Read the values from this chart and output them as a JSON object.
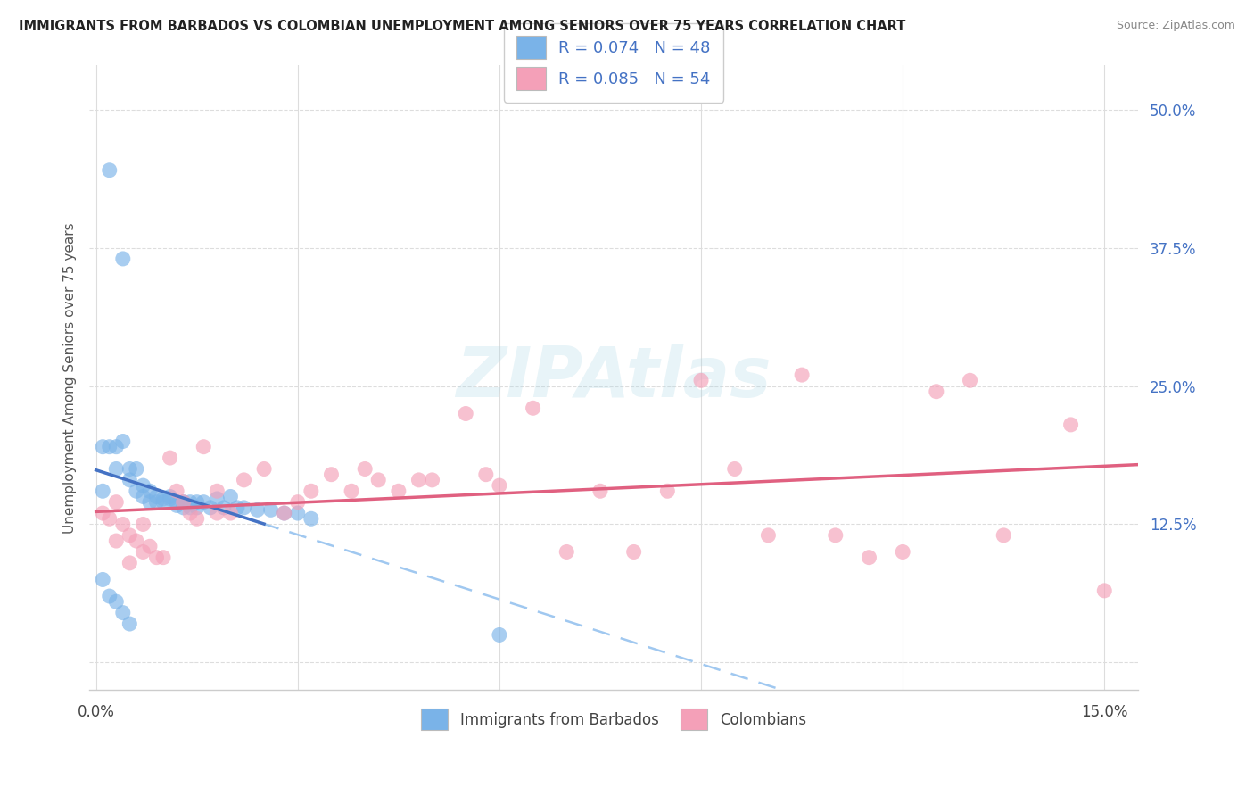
{
  "title": "IMMIGRANTS FROM BARBADOS VS COLOMBIAN UNEMPLOYMENT AMONG SENIORS OVER 75 YEARS CORRELATION CHART",
  "source": "Source: ZipAtlas.com",
  "ylabel": "Unemployment Among Seniors over 75 years",
  "y_ticks_right": [
    0.0,
    0.125,
    0.25,
    0.375,
    0.5
  ],
  "y_tick_labels_right": [
    "",
    "12.5%",
    "25.0%",
    "37.5%",
    "50.0%"
  ],
  "xlim": [
    -0.001,
    0.155
  ],
  "ylim": [
    -0.025,
    0.54
  ],
  "legend_R_blue": "R = 0.074",
  "legend_N_blue": "N = 48",
  "legend_R_pink": "R = 0.085",
  "legend_N_pink": "N = 54",
  "legend_label_blue": "Immigrants from Barbados",
  "legend_label_pink": "Colombians",
  "blue_color": "#7ab3e8",
  "pink_color": "#f4a0b8",
  "blue_line_color": "#4472c4",
  "pink_line_color": "#e06080",
  "blue_dash_color": "#a0c8f0",
  "background_color": "#ffffff",
  "grid_color": "#dddddd",
  "blue_points_x": [
    0.002,
    0.004,
    0.001,
    0.003,
    0.002,
    0.001,
    0.003,
    0.004,
    0.005,
    0.006,
    0.005,
    0.007,
    0.006,
    0.008,
    0.007,
    0.009,
    0.01,
    0.008,
    0.011,
    0.01,
    0.009,
    0.012,
    0.011,
    0.013,
    0.012,
    0.014,
    0.013,
    0.015,
    0.014,
    0.016,
    0.015,
    0.018,
    0.02,
    0.017,
    0.019,
    0.021,
    0.022,
    0.024,
    0.026,
    0.028,
    0.001,
    0.002,
    0.003,
    0.004,
    0.005,
    0.03,
    0.032,
    0.06
  ],
  "blue_points_y": [
    0.445,
    0.365,
    0.155,
    0.175,
    0.195,
    0.195,
    0.195,
    0.2,
    0.175,
    0.175,
    0.165,
    0.16,
    0.155,
    0.155,
    0.15,
    0.15,
    0.148,
    0.145,
    0.15,
    0.145,
    0.145,
    0.145,
    0.148,
    0.145,
    0.142,
    0.145,
    0.14,
    0.145,
    0.14,
    0.145,
    0.14,
    0.148,
    0.15,
    0.14,
    0.14,
    0.14,
    0.14,
    0.138,
    0.138,
    0.135,
    0.075,
    0.06,
    0.055,
    0.045,
    0.035,
    0.135,
    0.13,
    0.025
  ],
  "pink_points_x": [
    0.001,
    0.002,
    0.003,
    0.003,
    0.004,
    0.005,
    0.005,
    0.006,
    0.007,
    0.007,
    0.008,
    0.009,
    0.01,
    0.011,
    0.012,
    0.013,
    0.014,
    0.015,
    0.016,
    0.018,
    0.018,
    0.02,
    0.022,
    0.025,
    0.028,
    0.03,
    0.032,
    0.035,
    0.038,
    0.04,
    0.042,
    0.045,
    0.048,
    0.05,
    0.055,
    0.058,
    0.06,
    0.065,
    0.07,
    0.075,
    0.08,
    0.085,
    0.09,
    0.095,
    0.1,
    0.105,
    0.11,
    0.115,
    0.12,
    0.125,
    0.13,
    0.135,
    0.145,
    0.15
  ],
  "pink_points_y": [
    0.135,
    0.13,
    0.145,
    0.11,
    0.125,
    0.115,
    0.09,
    0.11,
    0.125,
    0.1,
    0.105,
    0.095,
    0.095,
    0.185,
    0.155,
    0.145,
    0.135,
    0.13,
    0.195,
    0.155,
    0.135,
    0.135,
    0.165,
    0.175,
    0.135,
    0.145,
    0.155,
    0.17,
    0.155,
    0.175,
    0.165,
    0.155,
    0.165,
    0.165,
    0.225,
    0.17,
    0.16,
    0.23,
    0.1,
    0.155,
    0.1,
    0.155,
    0.255,
    0.175,
    0.115,
    0.26,
    0.115,
    0.095,
    0.1,
    0.245,
    0.255,
    0.115,
    0.215,
    0.065
  ]
}
